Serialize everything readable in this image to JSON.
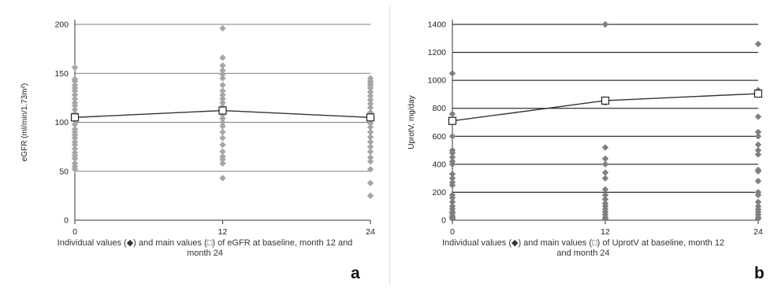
{
  "chart_data": [
    {
      "type": "scatter",
      "panel_label": "a",
      "ylabel": "eGFR (ml/min/1.73m²)",
      "caption": "Individual values (◆) and main values (□) of eGFR at baseline, month 12 and month 24",
      "caption_lines": [
        "Individual values (◆) and main values (□) of eGFR at baseline, month 12 and",
        "month 24"
      ],
      "x_ticks": [
        "0",
        "12",
        "24"
      ],
      "y_ticks": [
        "0",
        "50",
        "100",
        "150",
        "200"
      ],
      "ylim": [
        0,
        200
      ],
      "grid": true,
      "marker_color": "#a6a6a6",
      "line_color": "#333333",
      "series": [
        {
          "x": 0,
          "values": [
            156,
            144,
            142,
            138,
            135,
            132,
            128,
            124,
            120,
            117,
            113,
            109,
            106,
            102,
            98,
            93,
            90,
            87,
            84,
            80,
            77,
            73,
            69,
            66,
            63,
            58,
            55,
            52
          ]
        },
        {
          "x": 12,
          "values": [
            196,
            166,
            158,
            153,
            149,
            145,
            138,
            132,
            128,
            124,
            120,
            116,
            112,
            108,
            104,
            100,
            96,
            90,
            84,
            77,
            70,
            65,
            62,
            58,
            43
          ]
        },
        {
          "x": 24,
          "values": [
            145,
            142,
            140,
            138,
            135,
            131,
            127,
            123,
            119,
            115,
            110,
            107,
            103,
            99,
            95,
            90,
            85,
            80,
            75,
            70,
            64,
            60,
            52,
            38,
            25
          ]
        }
      ],
      "means": [
        {
          "x": 0,
          "y": 105
        },
        {
          "x": 12,
          "y": 112
        },
        {
          "x": 24,
          "y": 105
        }
      ]
    },
    {
      "type": "scatter",
      "panel_label": "b",
      "ylabel": "UprotV, mg/day",
      "caption": "Individual values (◆) and main values (□) of UprotV at baseline, month 12 and month 24",
      "caption_lines": [
        "Individual values (◆) and main values (□) of UprotV at baseline, month 12",
        "and month 24"
      ],
      "x_ticks": [
        "0",
        "12",
        "24"
      ],
      "y_ticks": [
        "0",
        "200",
        "400",
        "600",
        "800",
        "1000",
        "1200",
        "1400"
      ],
      "ylim": [
        0,
        1400
      ],
      "grid": true,
      "marker_color": "#7f7f7f",
      "line_color": "#333333",
      "series": [
        {
          "x": 0,
          "values": [
            1050,
            760,
            600,
            500,
            480,
            450,
            420,
            400,
            330,
            300,
            270,
            250,
            180,
            160,
            130,
            100,
            80,
            60,
            50,
            30,
            20,
            10
          ]
        },
        {
          "x": 12,
          "values": [
            1400,
            840,
            520,
            440,
            400,
            340,
            300,
            220,
            180,
            150,
            120,
            100,
            80,
            60,
            40,
            20,
            10
          ]
        },
        {
          "x": 24,
          "values": [
            1260,
            930,
            740,
            630,
            600,
            540,
            500,
            470,
            360,
            350,
            280,
            200,
            180,
            130,
            100,
            80,
            60,
            40,
            20,
            10
          ]
        }
      ],
      "means": [
        {
          "x": 0,
          "y": 710
        },
        {
          "x": 12,
          "y": 855
        },
        {
          "x": 24,
          "y": 905
        }
      ]
    }
  ]
}
